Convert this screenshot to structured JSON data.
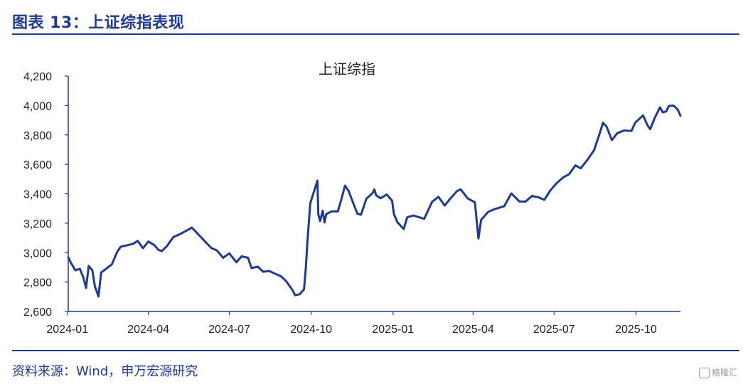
{
  "figure": {
    "title": "图表 13：上证综指表现",
    "source": "资料来源：Wind，申万宏源研究",
    "watermark": "格隆汇"
  },
  "colors": {
    "accent": "#1f3a93",
    "line": "#1f3a93"
  },
  "chart_data": {
    "type": "line",
    "title": "上证综指",
    "xlabel": "",
    "ylabel": "",
    "ylim": [
      2600,
      4200
    ],
    "y_ticks": [
      2600,
      2800,
      3000,
      3200,
      3400,
      3600,
      3800,
      4000,
      4200
    ],
    "y_tick_labels": [
      "2,600",
      "2,800",
      "3,000",
      "3,200",
      "3,400",
      "3,600",
      "3,800",
      "4,000",
      "4,200"
    ],
    "x_range": [
      "2024-01-02",
      "2025-11-20"
    ],
    "x_ticks": [
      "2024-01",
      "2024-04",
      "2024-07",
      "2024-10",
      "2025-01",
      "2025-04",
      "2025-07",
      "2025-10"
    ],
    "grid": false,
    "legend": "none",
    "series": [
      {
        "name": "上证综指",
        "points": [
          [
            "2024-01-02",
            2968
          ],
          [
            "2024-01-05",
            2930
          ],
          [
            "2024-01-10",
            2880
          ],
          [
            "2024-01-15",
            2890
          ],
          [
            "2024-01-19",
            2830
          ],
          [
            "2024-01-22",
            2760
          ],
          [
            "2024-01-25",
            2910
          ],
          [
            "2024-01-29",
            2880
          ],
          [
            "2024-02-01",
            2770
          ],
          [
            "2024-02-05",
            2702
          ],
          [
            "2024-02-08",
            2865
          ],
          [
            "2024-02-20",
            2920
          ],
          [
            "2024-02-26",
            3005
          ],
          [
            "2024-03-01",
            3040
          ],
          [
            "2024-03-08",
            3050
          ],
          [
            "2024-03-15",
            3060
          ],
          [
            "2024-03-20",
            3080
          ],
          [
            "2024-03-26",
            3030
          ],
          [
            "2024-04-01",
            3075
          ],
          [
            "2024-04-08",
            3050
          ],
          [
            "2024-04-12",
            3020
          ],
          [
            "2024-04-16",
            3010
          ],
          [
            "2024-04-22",
            3045
          ],
          [
            "2024-04-29",
            3105
          ],
          [
            "2024-05-08",
            3130
          ],
          [
            "2024-05-14",
            3150
          ],
          [
            "2024-05-20",
            3170
          ],
          [
            "2024-05-27",
            3125
          ],
          [
            "2024-06-03",
            3080
          ],
          [
            "2024-06-11",
            3030
          ],
          [
            "2024-06-17",
            3015
          ],
          [
            "2024-06-24",
            2965
          ],
          [
            "2024-07-01",
            2995
          ],
          [
            "2024-07-09",
            2935
          ],
          [
            "2024-07-15",
            2975
          ],
          [
            "2024-07-22",
            2965
          ],
          [
            "2024-07-26",
            2895
          ],
          [
            "2024-08-02",
            2905
          ],
          [
            "2024-08-08",
            2870
          ],
          [
            "2024-08-15",
            2875
          ],
          [
            "2024-08-22",
            2855
          ],
          [
            "2024-08-28",
            2840
          ],
          [
            "2024-09-03",
            2805
          ],
          [
            "2024-09-10",
            2745
          ],
          [
            "2024-09-13",
            2710
          ],
          [
            "2024-09-18",
            2717
          ],
          [
            "2024-09-23",
            2750
          ],
          [
            "2024-09-25",
            2895
          ],
          [
            "2024-09-27",
            3090
          ],
          [
            "2024-09-30",
            3336
          ],
          [
            "2024-10-08",
            3490
          ],
          [
            "2024-10-09",
            3260
          ],
          [
            "2024-10-11",
            3215
          ],
          [
            "2024-10-14",
            3285
          ],
          [
            "2024-10-16",
            3205
          ],
          [
            "2024-10-18",
            3262
          ],
          [
            "2024-10-24",
            3280
          ],
          [
            "2024-10-31",
            3280
          ],
          [
            "2024-11-05",
            3385
          ],
          [
            "2024-11-08",
            3455
          ],
          [
            "2024-11-12",
            3420
          ],
          [
            "2024-11-18",
            3325
          ],
          [
            "2024-11-22",
            3265
          ],
          [
            "2024-11-26",
            3258
          ],
          [
            "2024-12-02",
            3365
          ],
          [
            "2024-12-09",
            3405
          ],
          [
            "2024-12-11",
            3430
          ],
          [
            "2024-12-13",
            3390
          ],
          [
            "2024-12-18",
            3370
          ],
          [
            "2024-12-25",
            3395
          ],
          [
            "2024-12-31",
            3352
          ],
          [
            "2025-01-02",
            3262
          ],
          [
            "2025-01-06",
            3206
          ],
          [
            "2025-01-13",
            3160
          ],
          [
            "2025-01-17",
            3241
          ],
          [
            "2025-01-24",
            3252
          ],
          [
            "2025-02-05",
            3230
          ],
          [
            "2025-02-14",
            3346
          ],
          [
            "2025-02-21",
            3379
          ],
          [
            "2025-02-28",
            3320
          ],
          [
            "2025-03-07",
            3372
          ],
          [
            "2025-03-14",
            3419
          ],
          [
            "2025-03-18",
            3430
          ],
          [
            "2025-03-26",
            3368
          ],
          [
            "2025-04-03",
            3342
          ],
          [
            "2025-04-07",
            3096
          ],
          [
            "2025-04-10",
            3223
          ],
          [
            "2025-04-18",
            3277
          ],
          [
            "2025-04-25",
            3295
          ],
          [
            "2025-05-06",
            3316
          ],
          [
            "2025-05-14",
            3403
          ],
          [
            "2025-05-23",
            3348
          ],
          [
            "2025-05-30",
            3347
          ],
          [
            "2025-06-06",
            3385
          ],
          [
            "2025-06-13",
            3377
          ],
          [
            "2025-06-20",
            3359
          ],
          [
            "2025-06-27",
            3424
          ],
          [
            "2025-07-04",
            3473
          ],
          [
            "2025-07-11",
            3510
          ],
          [
            "2025-07-18",
            3534
          ],
          [
            "2025-07-25",
            3593
          ],
          [
            "2025-07-31",
            3573
          ],
          [
            "2025-08-08",
            3635
          ],
          [
            "2025-08-15",
            3697
          ],
          [
            "2025-08-22",
            3825
          ],
          [
            "2025-08-25",
            3883
          ],
          [
            "2025-08-29",
            3857
          ],
          [
            "2025-09-04",
            3765
          ],
          [
            "2025-09-10",
            3812
          ],
          [
            "2025-09-18",
            3831
          ],
          [
            "2025-09-22",
            3828
          ],
          [
            "2025-09-26",
            3828
          ],
          [
            "2025-09-30",
            3882
          ],
          [
            "2025-10-09",
            3933
          ],
          [
            "2025-10-14",
            3865
          ],
          [
            "2025-10-17",
            3839
          ],
          [
            "2025-10-22",
            3914
          ],
          [
            "2025-10-28",
            3988
          ],
          [
            "2025-10-31",
            3954
          ],
          [
            "2025-11-04",
            3960
          ],
          [
            "2025-11-07",
            3997
          ],
          [
            "2025-11-12",
            4000
          ],
          [
            "2025-11-14",
            3990
          ],
          [
            "2025-11-17",
            3972
          ],
          [
            "2025-11-20",
            3931
          ]
        ]
      }
    ]
  }
}
